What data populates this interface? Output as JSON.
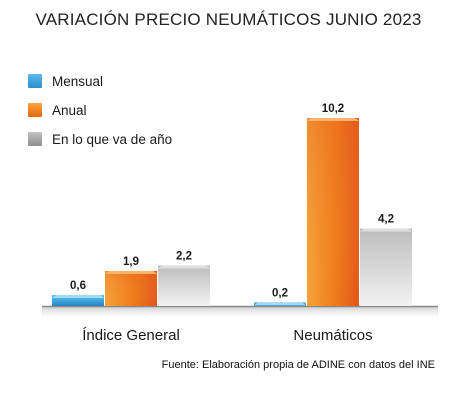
{
  "chart_data": {
    "type": "bar",
    "title": "VARIACIÓN PRECIO NEUMÁTICOS JUNIO 2023",
    "categories": [
      "Índice General",
      "Neumáticos"
    ],
    "series": [
      {
        "name": "Mensual",
        "values": [
          0.6,
          0.2
        ],
        "labels": [
          "0,6",
          "0,2"
        ],
        "color": "#2e9fd8"
      },
      {
        "name": "Anual",
        "values": [
          1.9,
          10.2
        ],
        "labels": [
          "1,9",
          "10,2"
        ],
        "color": "#f07f1a"
      },
      {
        "name": "En lo que va de año",
        "values": [
          2.2,
          4.2
        ],
        "labels": [
          "2,2",
          "4,2"
        ],
        "color": "#a9a9a9"
      }
    ],
    "ylim": [
      0,
      10.2
    ],
    "grid": false,
    "legend_position": "top-left",
    "xlabel": "",
    "ylabel": "",
    "source": "Fuente: Elaboración propia de ADINE con datos del INE"
  }
}
